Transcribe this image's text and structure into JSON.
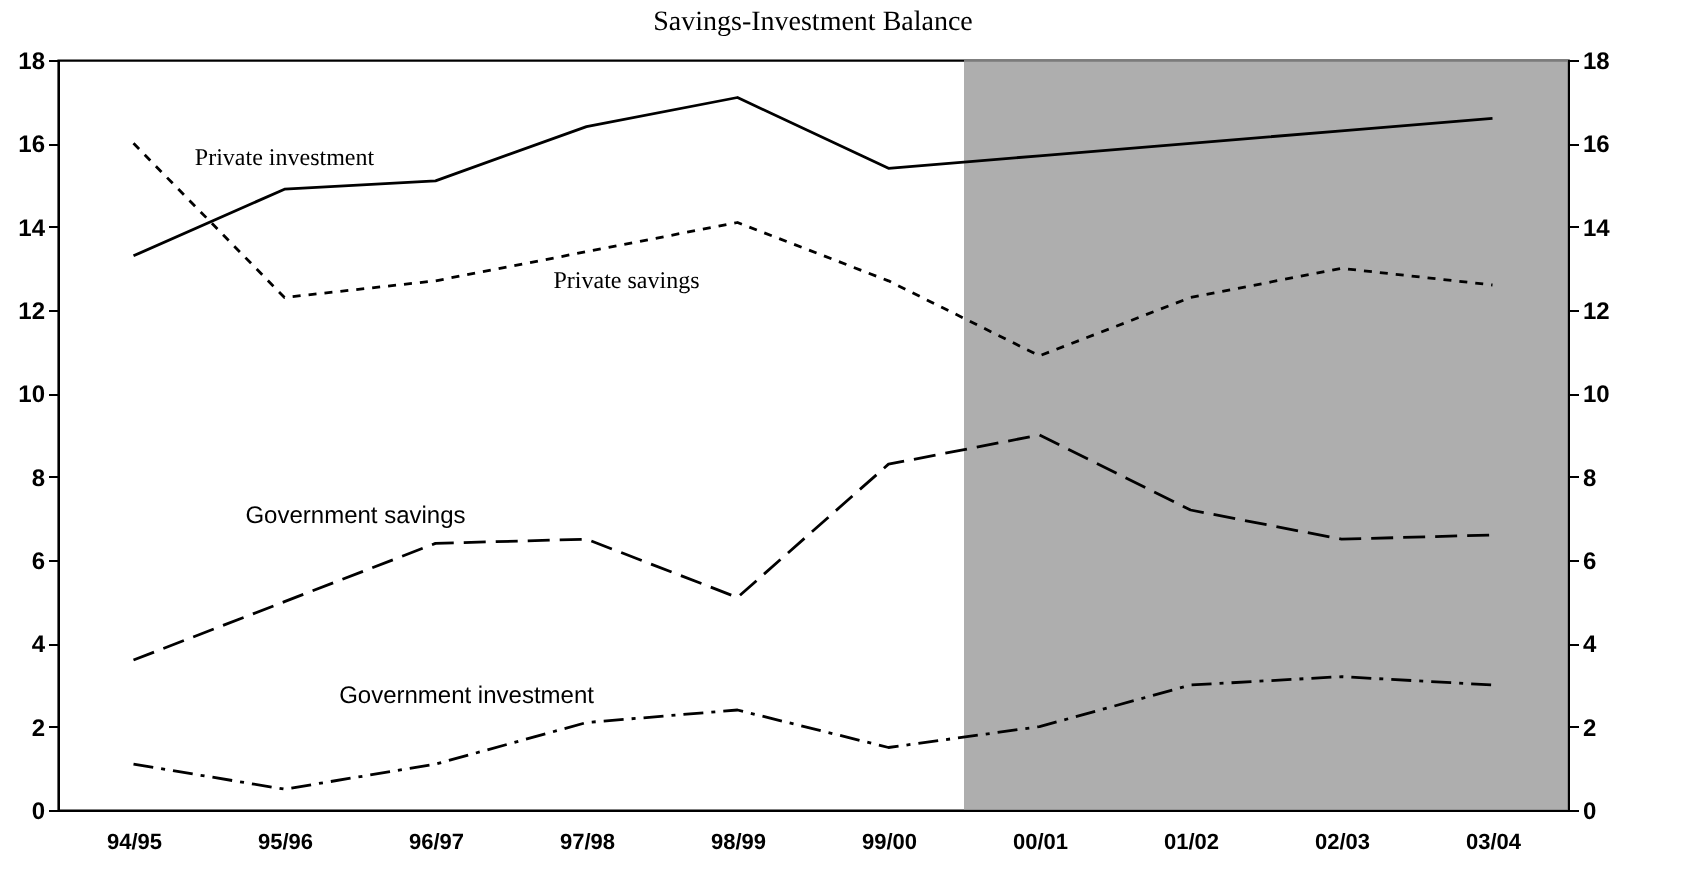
{
  "chart_data": {
    "type": "line",
    "title": "Savings-Investment Balance",
    "categories": [
      "94/95",
      "95/96",
      "96/97",
      "97/98",
      "98/99",
      "99/00",
      "00/01",
      "01/02",
      "02/03",
      "03/04"
    ],
    "series": [
      {
        "name": "Private investment",
        "color": "#000000",
        "line_style": "solid",
        "values": [
          13.3,
          14.9,
          15.1,
          16.4,
          17.1,
          15.4,
          15.7,
          16.0,
          16.3,
          16.6
        ]
      },
      {
        "name": "Private savings",
        "color": "#000000",
        "line_style": "dotted",
        "values": [
          16.0,
          12.3,
          12.7,
          13.4,
          14.1,
          12.7,
          10.9,
          12.3,
          13.0,
          12.6
        ]
      },
      {
        "name": "Government savings",
        "color": "#000000",
        "line_style": "dashed",
        "values": [
          3.6,
          5.0,
          6.4,
          6.5,
          5.1,
          8.3,
          9.0,
          7.2,
          6.5,
          6.6
        ]
      },
      {
        "name": "Government investment",
        "color": "#000000",
        "line_style": "dashdot",
        "values": [
          1.1,
          0.5,
          1.1,
          2.1,
          2.4,
          1.5,
          2.0,
          3.0,
          3.2,
          3.0
        ]
      }
    ],
    "ylim": [
      0,
      18
    ],
    "yticks": [
      0,
      2,
      4,
      6,
      8,
      10,
      12,
      14,
      16,
      18
    ],
    "y2lim": [
      0,
      18
    ],
    "y2ticks": [
      0,
      2,
      4,
      6,
      8,
      10,
      12,
      14,
      16,
      18
    ],
    "bands": [
      {
        "axis": "x",
        "from": "00/01",
        "to": "03/04",
        "color": "#9a9a9a"
      }
    ],
    "grid": false,
    "legend": false,
    "marker": "none"
  }
}
